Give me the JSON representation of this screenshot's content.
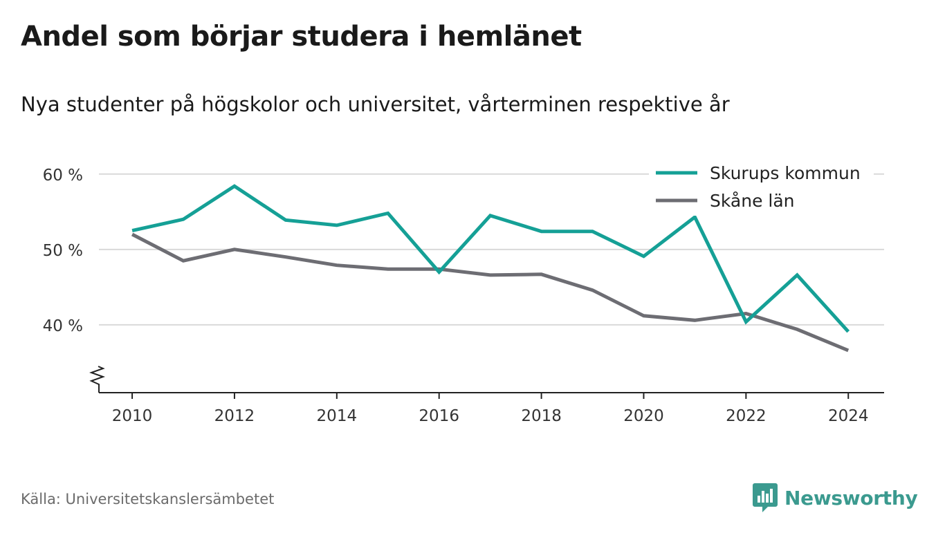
{
  "title": "Andel som börjar studera i hemlänet",
  "subtitle": "Nya studenter på högskolor och universitet, vårterminen respektive år",
  "source": "Källa: Universitetskanslersämbetet",
  "brand": {
    "name": "Newsworthy",
    "icon": "newsworthy-logo-icon",
    "color": "#3b9a8f"
  },
  "chart_data": {
    "type": "line",
    "title": "Andel som börjar studera i hemlänet",
    "subtitle": "Nya studenter på högskolor och universitet, vårterminen respektive år",
    "x": [
      2010,
      2011,
      2012,
      2013,
      2014,
      2015,
      2016,
      2017,
      2018,
      2019,
      2020,
      2021,
      2022,
      2023,
      2024
    ],
    "x_ticks": [
      "2010",
      "2012",
      "2014",
      "2016",
      "2018",
      "2020",
      "2022",
      "2024"
    ],
    "y_ticks": [
      "40 %",
      "50 %",
      "60 %"
    ],
    "y_tick_values": [
      40,
      50,
      60
    ],
    "ylim": [
      31,
      62
    ],
    "xlim": [
      2009.35,
      2024.7
    ],
    "grid": true,
    "axis_break": true,
    "legend_position": "top-right",
    "series": [
      {
        "name": "Skurups kommun",
        "color": "#15a096",
        "values": [
          52.5,
          54.0,
          58.4,
          53.9,
          53.2,
          54.8,
          47.0,
          54.5,
          52.4,
          52.4,
          49.1,
          54.3,
          40.4,
          46.6,
          39.1
        ]
      },
      {
        "name": "Skåne län",
        "color": "#6d6d73",
        "values": [
          52.0,
          48.5,
          50.0,
          49.0,
          47.9,
          47.4,
          47.4,
          46.6,
          46.7,
          44.6,
          41.2,
          40.6,
          41.5,
          39.4,
          36.6
        ]
      }
    ]
  }
}
